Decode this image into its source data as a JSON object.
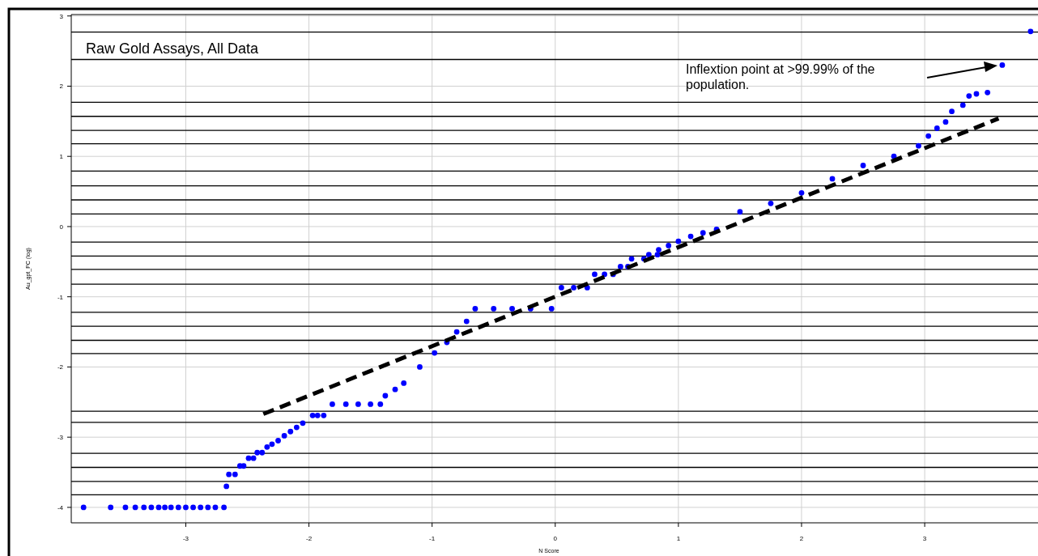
{
  "chart_data": {
    "type": "scatter",
    "title": "Raw Gold Assays, All Data",
    "xlabel": "N Score",
    "ylabel": "Au_gpt_PC (log)",
    "xlim": [
      -3.93,
      3.92
    ],
    "ylim": [
      -4.22,
      3.02
    ],
    "xticks": [
      -3,
      -2,
      -1,
      0,
      1,
      2,
      3
    ],
    "yticks": [
      -4,
      -3,
      -2,
      -1,
      0,
      1,
      2,
      3
    ],
    "grid": true,
    "series": [
      {
        "marker": "circle",
        "color": "#0000ff",
        "x": [
          -3.83,
          -3.61,
          -3.49,
          -3.41,
          -3.34,
          -3.28,
          -3.22,
          -3.17,
          -3.12,
          -3.06,
          -3.0,
          -2.94,
          -2.88,
          -2.82,
          -2.76,
          -2.69,
          -2.67,
          -2.65,
          -2.6,
          -2.56,
          -2.53,
          -2.49,
          -2.45,
          -2.42,
          -2.38,
          -2.34,
          -2.3,
          -2.25,
          -2.2,
          -2.15,
          -2.1,
          -2.05,
          -1.97,
          -1.93,
          -1.88,
          -1.81,
          -1.7,
          -1.6,
          -1.5,
          -1.42,
          -1.38,
          -1.3,
          -1.23,
          -1.1,
          -0.98,
          -0.88,
          -0.8,
          -0.72,
          -0.65,
          -0.5,
          -0.35,
          -0.2,
          -0.03,
          0.05,
          0.15,
          0.26,
          0.32,
          0.4,
          0.47,
          0.53,
          0.59,
          0.62,
          0.72,
          0.76,
          0.83,
          0.84,
          0.92,
          1.0,
          1.1,
          1.2,
          1.31,
          1.5,
          1.75,
          2.0,
          2.25,
          2.5,
          2.75,
          2.95,
          3.03,
          3.1,
          3.17,
          3.22,
          3.31,
          3.36,
          3.42,
          3.51,
          3.63,
          3.86
        ],
        "values": [
          -4,
          -4,
          -4,
          -4,
          -4,
          -4,
          -4,
          -4,
          -4,
          -4,
          -4,
          -4,
          -4,
          -4,
          -4,
          -4,
          -3.7,
          -3.53,
          -3.53,
          -3.41,
          -3.41,
          -3.3,
          -3.3,
          -3.22,
          -3.22,
          -3.14,
          -3.1,
          -3.05,
          -2.98,
          -2.92,
          -2.86,
          -2.8,
          -2.69,
          -2.69,
          -2.69,
          -2.53,
          -2.53,
          -2.53,
          -2.53,
          -2.53,
          -2.41,
          -2.32,
          -2.23,
          -2.0,
          -1.8,
          -1.65,
          -1.5,
          -1.35,
          -1.17,
          -1.17,
          -1.17,
          -1.17,
          -1.17,
          -0.87,
          -0.87,
          -0.87,
          -0.68,
          -0.68,
          -0.68,
          -0.57,
          -0.57,
          -0.46,
          -0.46,
          -0.4,
          -0.4,
          -0.33,
          -0.27,
          -0.21,
          -0.14,
          -0.09,
          -0.04,
          0.21,
          0.33,
          0.48,
          0.68,
          0.87,
          1.0,
          1.15,
          1.29,
          1.4,
          1.49,
          1.64,
          1.73,
          1.86,
          1.89,
          1.91,
          2.3,
          2.78
        ]
      },
      {
        "type": "line",
        "color": "#000000",
        "line_style": "dashed",
        "marker": "none",
        "x": [
          -2.37,
          3.6
        ],
        "values": [
          -2.67,
          1.54
        ]
      }
    ],
    "ref_lines": [
      {
        "axis": "y",
        "value": 2.77,
        "color": "#000000"
      },
      {
        "axis": "y",
        "value": 2.38,
        "color": "#000000"
      },
      {
        "axis": "y",
        "value": 1.77,
        "color": "#000000"
      },
      {
        "axis": "y",
        "value": 1.57,
        "color": "#000000"
      },
      {
        "axis": "y",
        "value": 1.37,
        "color": "#000000"
      },
      {
        "axis": "y",
        "value": 1.18,
        "color": "#000000"
      },
      {
        "axis": "y",
        "value": 0.79,
        "color": "#000000"
      },
      {
        "axis": "y",
        "value": 0.58,
        "color": "#000000"
      },
      {
        "axis": "y",
        "value": 0.38,
        "color": "#000000"
      },
      {
        "axis": "y",
        "value": 0.18,
        "color": "#000000"
      },
      {
        "axis": "y",
        "value": -0.22,
        "color": "#000000"
      },
      {
        "axis": "y",
        "value": -0.42,
        "color": "#000000"
      },
      {
        "axis": "y",
        "value": -0.61,
        "color": "#000000"
      },
      {
        "axis": "y",
        "value": -0.82,
        "color": "#000000"
      },
      {
        "axis": "y",
        "value": -1.22,
        "color": "#000000"
      },
      {
        "axis": "y",
        "value": -1.42,
        "color": "#000000"
      },
      {
        "axis": "y",
        "value": -1.62,
        "color": "#000000"
      },
      {
        "axis": "y",
        "value": -1.81,
        "color": "#000000"
      },
      {
        "axis": "y",
        "value": -2.63,
        "color": "#000000"
      },
      {
        "axis": "y",
        "value": -2.79,
        "color": "#000000"
      },
      {
        "axis": "y",
        "value": -3.23,
        "color": "#000000"
      },
      {
        "axis": "y",
        "value": -3.43,
        "color": "#000000"
      },
      {
        "axis": "y",
        "value": -3.63,
        "color": "#000000"
      },
      {
        "axis": "y",
        "value": -3.82,
        "color": "#000000"
      }
    ],
    "annotations": [
      "Inflextion point at >99.99% of the population."
    ]
  }
}
